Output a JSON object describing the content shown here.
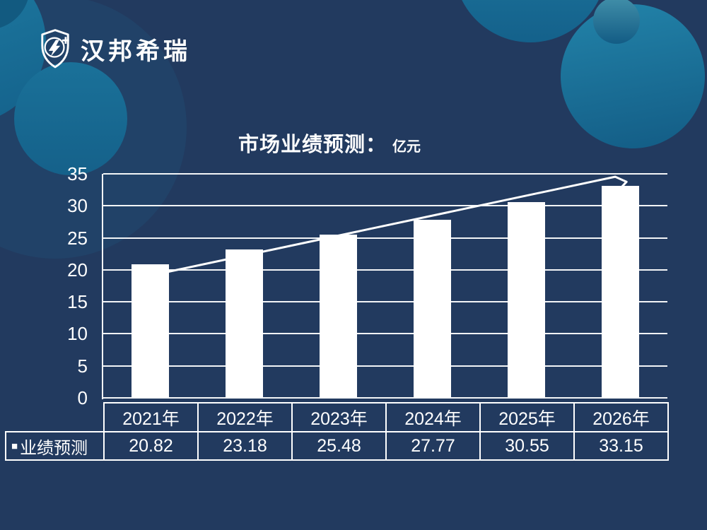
{
  "colors": {
    "background": "#223A5F",
    "circle_teal": "#17719A",
    "bar": "#FFFFFF",
    "text": "#FFFFFF"
  },
  "logo": {
    "text": "汉邦希瑞",
    "icon": "shield-bolt-plus"
  },
  "chart_data": {
    "type": "bar",
    "title": "市场业绩预测：",
    "unit_label": "亿元",
    "categories": [
      "2021年",
      "2022年",
      "2023年",
      "2024年",
      "2025年",
      "2026年"
    ],
    "series": [
      {
        "name": "业绩预测",
        "values": [
          20.82,
          23.18,
          25.48,
          27.77,
          30.55,
          33.15
        ]
      }
    ],
    "ylim": [
      0,
      35
    ],
    "yticks": [
      0,
      5,
      10,
      15,
      20,
      25,
      30,
      35
    ],
    "grid": true,
    "bar_color": "#FFFFFF",
    "legend_position": "table-left",
    "trend_arrow": {
      "points": [
        [
          0.5,
          19.1
        ],
        [
          5.445,
          34.55
        ],
        [
          5.565,
          33.75
        ]
      ],
      "barb": [
        [
          5.565,
          33.75
        ],
        [
          5.495,
          32.65
        ]
      ]
    }
  },
  "table": {
    "legend_marker": "■",
    "legend_label": "业绩预测",
    "headers": [
      "2021年",
      "2022年",
      "2023年",
      "2024年",
      "2025年",
      "2026年"
    ],
    "values": [
      "20.82",
      "23.18",
      "25.48",
      "27.77",
      "30.55",
      "33.15"
    ]
  }
}
